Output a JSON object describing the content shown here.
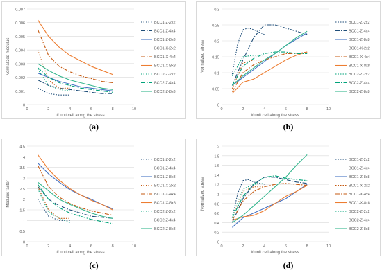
{
  "figure": {
    "captions": [
      "(a)",
      "(b)",
      "(c)",
      "(d)"
    ]
  },
  "chart_data": [
    {
      "type": "line",
      "panel": "a",
      "title": "",
      "xlabel": "# unit cell along the stress",
      "ylabel": "Normalized modulus",
      "xlim": [
        0,
        10
      ],
      "ylim": [
        0,
        0.007
      ],
      "xticks": [
        "0",
        "2",
        "4",
        "6",
        "8",
        "10"
      ],
      "yticks": [
        "0",
        "0.001",
        "0.002",
        "0.003",
        "0.004",
        "0.005",
        "0.006",
        "0.007"
      ],
      "grid": true,
      "legend": "right",
      "series": [
        {
          "name": "BCC1-Z-2x2",
          "color": "#1f4e79",
          "dash": "1.5,2",
          "x": [
            1,
            2,
            3,
            4
          ],
          "y": [
            0.0012,
            0.0008,
            0.0007,
            0.0007
          ]
        },
        {
          "name": "BCC1-Z-4x4",
          "color": "#1f4e79",
          "dash": "6,2,1.5,2",
          "x": [
            1,
            2,
            3,
            4,
            5,
            6,
            7,
            8
          ],
          "y": [
            0.0018,
            0.0014,
            0.0012,
            0.0011,
            0.001,
            0.0009,
            0.0008,
            0.0008
          ]
        },
        {
          "name": "BCC1-Z-8x8",
          "color": "#4472c4",
          "dash": "",
          "x": [
            1,
            2,
            3,
            4,
            5,
            6,
            7,
            8
          ],
          "y": [
            0.0023,
            0.002,
            0.0017,
            0.0015,
            0.0013,
            0.0012,
            0.0011,
            0.001
          ]
        },
        {
          "name": "BCC1-X-2x2",
          "color": "#c55a11",
          "dash": "1.5,2",
          "x": [
            1,
            2,
            3,
            4
          ],
          "y": [
            0.004,
            0.0018,
            0.0012,
            0.0012
          ]
        },
        {
          "name": "BCC1-X-4x4",
          "color": "#c55a11",
          "dash": "6,2,1.5,2",
          "x": [
            1,
            2,
            3,
            4,
            5,
            6,
            7,
            8
          ],
          "y": [
            0.0055,
            0.0036,
            0.0028,
            0.0024,
            0.0021,
            0.0019,
            0.0017,
            0.0016
          ]
        },
        {
          "name": "BCC1-X-8x8",
          "color": "#ed7d31",
          "dash": "",
          "x": [
            1,
            2,
            3,
            4,
            5,
            6,
            7,
            8
          ],
          "y": [
            0.0062,
            0.005,
            0.0042,
            0.0036,
            0.0032,
            0.0028,
            0.0025,
            0.0022
          ]
        },
        {
          "name": "BCC2-Z-2x2",
          "color": "#00a37a",
          "dash": "1.5,2",
          "x": [
            1,
            2,
            3,
            4
          ],
          "y": [
            0.0026,
            0.0014,
            0.0011,
            0.001
          ]
        },
        {
          "name": "BCC2-Z-4x4",
          "color": "#00a37a",
          "dash": "6,2,1.5,2",
          "x": [
            1,
            2,
            3,
            4,
            5,
            6,
            7,
            8
          ],
          "y": [
            0.0027,
            0.002,
            0.0016,
            0.0014,
            0.0012,
            0.0011,
            0.001,
            0.0009
          ]
        },
        {
          "name": "BCC2-Z-8x8",
          "color": "#33b68d",
          "dash": "",
          "x": [
            1,
            2,
            3,
            4,
            5,
            6,
            7,
            8
          ],
          "y": [
            0.003,
            0.0025,
            0.0021,
            0.0018,
            0.0016,
            0.0014,
            0.0012,
            0.0011
          ]
        }
      ]
    },
    {
      "type": "line",
      "panel": "b",
      "title": "",
      "xlabel": "# unit cell along the stress",
      "ylabel": "Normalized stress",
      "xlim": [
        0,
        10
      ],
      "ylim": [
        0,
        0.3
      ],
      "xticks": [
        "0",
        "2",
        "4",
        "6",
        "8",
        "10"
      ],
      "yticks": [
        "0",
        "0.05",
        "0.1",
        "0.15",
        "0.2",
        "0.25",
        "0.3"
      ],
      "grid": true,
      "legend": "right",
      "series": [
        {
          "name": "BCC1-Z-2x2",
          "color": "#1f4e79",
          "dash": "1.5,2",
          "x": [
            1,
            1.5,
            2,
            2.5,
            3,
            4
          ],
          "y": [
            0.095,
            0.19,
            0.235,
            0.24,
            0.235,
            0.22
          ]
        },
        {
          "name": "BCC1-Z-4x4",
          "color": "#1f4e79",
          "dash": "6,2,1.5,2",
          "x": [
            1,
            2,
            3,
            4,
            5,
            6,
            7,
            8
          ],
          "y": [
            0.06,
            0.14,
            0.21,
            0.25,
            0.25,
            0.24,
            0.23,
            0.22
          ]
        },
        {
          "name": "BCC1-Z-8x8",
          "color": "#4472c4",
          "dash": "",
          "x": [
            1,
            2,
            3,
            4,
            5,
            6,
            7,
            8
          ],
          "y": [
            0.06,
            0.085,
            0.11,
            0.135,
            0.16,
            0.185,
            0.205,
            0.225
          ]
        },
        {
          "name": "BCC1-X-2x2",
          "color": "#c55a11",
          "dash": "1.5,2",
          "x": [
            1,
            2,
            3,
            4
          ],
          "y": [
            0.05,
            0.13,
            0.14,
            0.14
          ]
        },
        {
          "name": "BCC1-X-4x4",
          "color": "#c55a11",
          "dash": "6,2,1.5,2",
          "x": [
            1,
            2,
            3,
            4,
            5,
            6,
            7,
            8
          ],
          "y": [
            0.04,
            0.1,
            0.125,
            0.14,
            0.15,
            0.16,
            0.16,
            0.165
          ]
        },
        {
          "name": "BCC1-X-8x8",
          "color": "#ed7d31",
          "dash": "",
          "x": [
            1,
            2,
            3,
            4,
            5,
            6,
            7,
            8
          ],
          "y": [
            0.035,
            0.07,
            0.08,
            0.1,
            0.12,
            0.14,
            0.155,
            0.165
          ]
        },
        {
          "name": "BCC2-Z-2x2",
          "color": "#00a37a",
          "dash": "1.5,2",
          "x": [
            1,
            2,
            3,
            4
          ],
          "y": [
            0.09,
            0.15,
            0.155,
            0.155
          ]
        },
        {
          "name": "BCC2-Z-4x4",
          "color": "#00a37a",
          "dash": "6,2,1.5,2",
          "x": [
            1,
            2,
            3,
            4,
            5,
            6,
            7,
            8
          ],
          "y": [
            0.06,
            0.12,
            0.145,
            0.16,
            0.165,
            0.165,
            0.16,
            0.16
          ]
        },
        {
          "name": "BCC2-Z-8x8",
          "color": "#33b68d",
          "dash": "",
          "x": [
            1,
            2,
            3,
            4,
            5,
            6,
            7,
            8
          ],
          "y": [
            0.06,
            0.09,
            0.115,
            0.14,
            0.16,
            0.185,
            0.21,
            0.23
          ]
        }
      ]
    },
    {
      "type": "line",
      "panel": "c",
      "title": "",
      "xlabel": "# unit cell along the stress",
      "ylabel": "Modulus factor",
      "xlim": [
        0,
        10
      ],
      "ylim": [
        0,
        4.5
      ],
      "xticks": [
        "0",
        "2",
        "4",
        "6",
        "8",
        "10"
      ],
      "yticks": [
        "0",
        "0.5",
        "1",
        "1.5",
        "2",
        "2.5",
        "3",
        "3.5",
        "4",
        "4.5"
      ],
      "grid": true,
      "legend": "right",
      "series": [
        {
          "name": "BCC1-Z-2x2",
          "color": "#1f4e79",
          "dash": "1.5,2",
          "x": [
            1,
            2,
            3,
            4
          ],
          "y": [
            2.0,
            1.2,
            1.0,
            1.0
          ]
        },
        {
          "name": "BCC1-Z-4x4",
          "color": "#1f4e79",
          "dash": "6,2,1.5,2",
          "x": [
            1,
            2,
            3,
            4,
            5,
            6,
            7,
            8
          ],
          "y": [
            2.6,
            2.0,
            1.7,
            1.5,
            1.35,
            1.2,
            1.15,
            1.1
          ]
        },
        {
          "name": "BCC1-Z-8x8",
          "color": "#4472c4",
          "dash": "",
          "x": [
            1,
            2,
            3,
            4,
            5,
            6,
            7,
            8
          ],
          "y": [
            3.7,
            3.2,
            2.8,
            2.45,
            2.2,
            2.0,
            1.75,
            1.55
          ]
        },
        {
          "name": "BCC1-X-2x2",
          "color": "#c55a11",
          "dash": "1.5,2",
          "x": [
            1,
            2,
            3,
            4
          ],
          "y": [
            2.6,
            1.5,
            1.1,
            1.1
          ]
        },
        {
          "name": "BCC1-X-4x4",
          "color": "#c55a11",
          "dash": "6,2,1.5,2",
          "x": [
            1,
            2,
            3,
            4,
            5,
            6,
            7,
            8
          ],
          "y": [
            3.6,
            2.6,
            2.1,
            1.8,
            1.6,
            1.45,
            1.35,
            1.25
          ]
        },
        {
          "name": "BCC1-X-8x8",
          "color": "#ed7d31",
          "dash": "",
          "x": [
            1,
            2,
            3,
            4,
            5,
            6,
            7,
            8
          ],
          "y": [
            4.1,
            3.4,
            2.9,
            2.5,
            2.2,
            1.95,
            1.75,
            1.5
          ]
        },
        {
          "name": "BCC2-Z-2x2",
          "color": "#00a37a",
          "dash": "1.5,2",
          "x": [
            1,
            2,
            3,
            4
          ],
          "y": [
            2.5,
            1.4,
            1.1,
            0.9
          ]
        },
        {
          "name": "BCC2-Z-4x4",
          "color": "#00a37a",
          "dash": "6,2,1.5,2",
          "x": [
            1,
            2,
            3,
            4,
            5,
            6,
            7,
            8
          ],
          "y": [
            2.7,
            2.0,
            1.6,
            1.35,
            1.2,
            1.05,
            0.95,
            0.85
          ]
        },
        {
          "name": "BCC2-Z-8x8",
          "color": "#33b68d",
          "dash": "",
          "x": [
            1,
            2,
            3,
            4,
            5,
            6,
            7,
            8
          ],
          "y": [
            2.8,
            2.4,
            2.0,
            1.75,
            1.55,
            1.35,
            1.2,
            1.1
          ]
        }
      ]
    },
    {
      "type": "line",
      "panel": "d",
      "title": "",
      "xlabel": "# unit cell along the stress",
      "ylabel": "Normalized stress",
      "xlim": [
        0,
        10
      ],
      "ylim": [
        0,
        2
      ],
      "xticks": [
        "0",
        "2",
        "4",
        "6",
        "8",
        "10"
      ],
      "yticks": [
        "0",
        "0.2",
        "0.4",
        "0.6",
        "0.8",
        "1",
        "1.2",
        "1.4",
        "1.6",
        "1.8",
        "2"
      ],
      "grid": true,
      "legend": "right",
      "series": [
        {
          "name": "BCC1-Z-2x2",
          "color": "#1f4e79",
          "dash": "1.5,2",
          "x": [
            1,
            1.5,
            2,
            2.5,
            3,
            4
          ],
          "y": [
            0.5,
            1.0,
            1.28,
            1.3,
            1.25,
            1.2
          ]
        },
        {
          "name": "BCC1-Z-4x4",
          "color": "#1f4e79",
          "dash": "6,2,1.5,2",
          "x": [
            1,
            2,
            3,
            4,
            5,
            6,
            7,
            8
          ],
          "y": [
            0.4,
            0.9,
            1.2,
            1.35,
            1.35,
            1.3,
            1.25,
            1.22
          ]
        },
        {
          "name": "BCC1-Z-8x8",
          "color": "#4472c4",
          "dash": "",
          "x": [
            1,
            2,
            3,
            4,
            5,
            6,
            7,
            8
          ],
          "y": [
            0.3,
            0.5,
            0.6,
            0.7,
            0.8,
            0.9,
            1.05,
            1.2
          ]
        },
        {
          "name": "BCC1-X-2x2",
          "color": "#c55a11",
          "dash": "1.5,2",
          "x": [
            1,
            2,
            3,
            4
          ],
          "y": [
            0.5,
            1.05,
            1.15,
            1.15
          ]
        },
        {
          "name": "BCC1-X-4x4",
          "color": "#c55a11",
          "dash": "6,2,1.5,2",
          "x": [
            1,
            2,
            3,
            4,
            5,
            6,
            7,
            8
          ],
          "y": [
            0.45,
            0.85,
            1.05,
            1.15,
            1.2,
            1.22,
            1.2,
            1.18
          ]
        },
        {
          "name": "BCC1-X-8x8",
          "color": "#ed7d31",
          "dash": "",
          "x": [
            1,
            2,
            3,
            4,
            5,
            6,
            7,
            8
          ],
          "y": [
            0.45,
            0.52,
            0.55,
            0.65,
            0.8,
            0.95,
            1.05,
            1.18
          ]
        },
        {
          "name": "BCC2-Z-2x2",
          "color": "#00a37a",
          "dash": "1.5,2",
          "x": [
            1,
            2,
            3,
            4
          ],
          "y": [
            0.55,
            1.1,
            1.2,
            1.22
          ]
        },
        {
          "name": "BCC2-Z-4x4",
          "color": "#00a37a",
          "dash": "6,2,1.5,2",
          "x": [
            1,
            2,
            3,
            4,
            5,
            6,
            7,
            8
          ],
          "y": [
            0.5,
            0.95,
            1.2,
            1.35,
            1.38,
            1.33,
            1.3,
            1.28
          ]
        },
        {
          "name": "BCC2-Z-8x8",
          "color": "#33b68d",
          "dash": "",
          "x": [
            1,
            2,
            3,
            4,
            5,
            6,
            7,
            8
          ],
          "y": [
            0.4,
            0.55,
            0.75,
            0.95,
            1.15,
            1.35,
            1.6,
            1.82
          ]
        }
      ]
    }
  ]
}
